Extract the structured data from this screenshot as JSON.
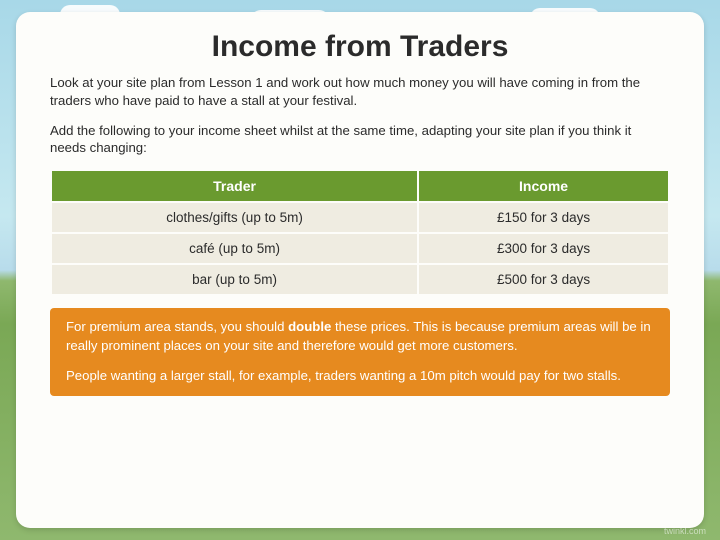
{
  "title": "Income from Traders",
  "para1": "Look at your site plan from Lesson 1 and work out how much money you will have coming in from the traders who have paid to have a stall at your festival.",
  "para2": "Add the following to your income sheet whilst at the same time, adapting your site plan if you think it needs changing:",
  "table": {
    "col1_header": "Trader",
    "col2_header": "Income",
    "rows": [
      {
        "trader": "clothes/gifts (up to 5m)",
        "income": "£150 for 3 days"
      },
      {
        "trader": "café (up to 5m)",
        "income": "£300 for 3 days"
      },
      {
        "trader": "bar (up to 5m)",
        "income": "£500 for 3 days"
      }
    ]
  },
  "info": {
    "line1a": "For premium area stands, you should ",
    "line1b": "double",
    "line1c": " these prices. This is because premium areas will be in really prominent places on your site and therefore would get more customers.",
    "line2": "People wanting a larger stall, for example, traders wanting a 10m pitch would pay for two stalls."
  },
  "watermark": "twinkl.com",
  "colors": {
    "header_bg": "#6a9a2f",
    "row_bg": "#efece1",
    "info_bg": "#e68a1f",
    "card_bg": "#fdfdfa"
  }
}
